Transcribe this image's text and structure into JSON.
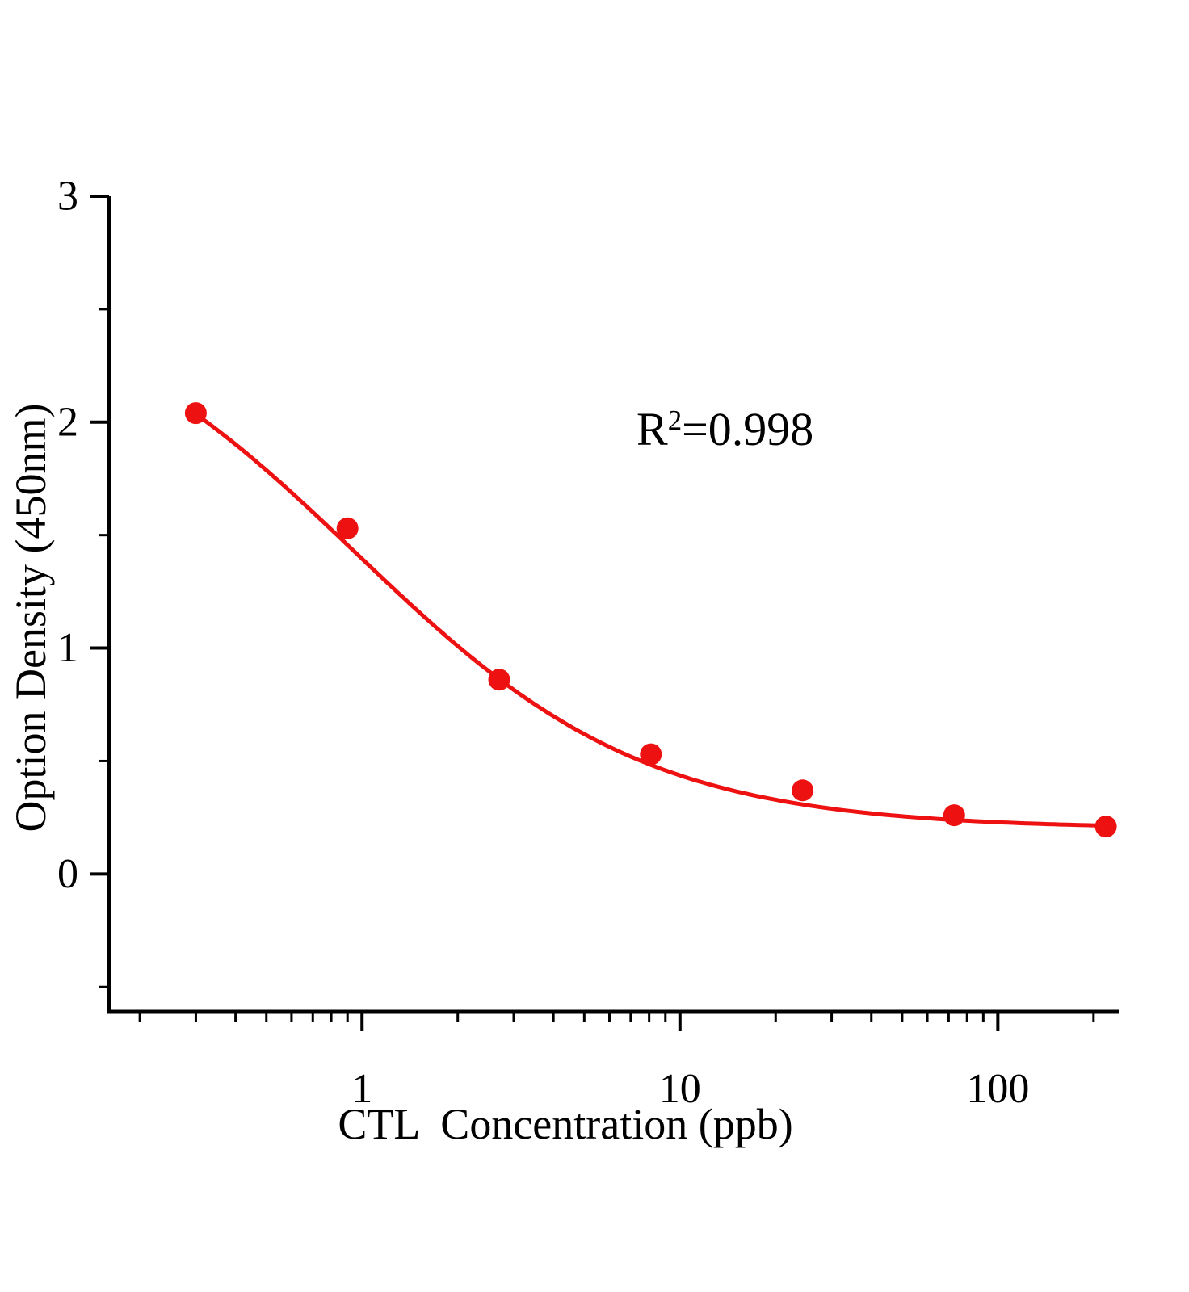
{
  "figure": {
    "background": "#ffffff"
  },
  "chart_data": {
    "type": "scatter",
    "title": "",
    "xlabel": "CTL  Concentration (ppb)",
    "ylabel": "Option Density (450nm)",
    "annotation": {
      "base": "R",
      "superscript": "2",
      "rest": "=0.998"
    },
    "x_scale": "log",
    "y_scale": "linear",
    "x": [
      0.3,
      0.9,
      2.7,
      8.1,
      24.3,
      72.9,
      218.7
    ],
    "y": [
      2.04,
      1.53,
      0.86,
      0.53,
      0.37,
      0.26,
      0.21
    ],
    "xlim": [
      0.16,
      240
    ],
    "ylim": [
      -0.61,
      3
    ],
    "x_ticks": [
      1,
      10,
      100
    ],
    "y_ticks": [
      0,
      1,
      2,
      3
    ],
    "y_minor_step": 0.5,
    "grid": false,
    "legend": null,
    "point_color": "#ee1111",
    "line_color": "#ee1111",
    "axis_color": "#000000",
    "fit": {
      "model": "4PL",
      "top": 2.65,
      "bottom": 0.2,
      "ec50": 0.95,
      "hill": 0.95
    }
  }
}
